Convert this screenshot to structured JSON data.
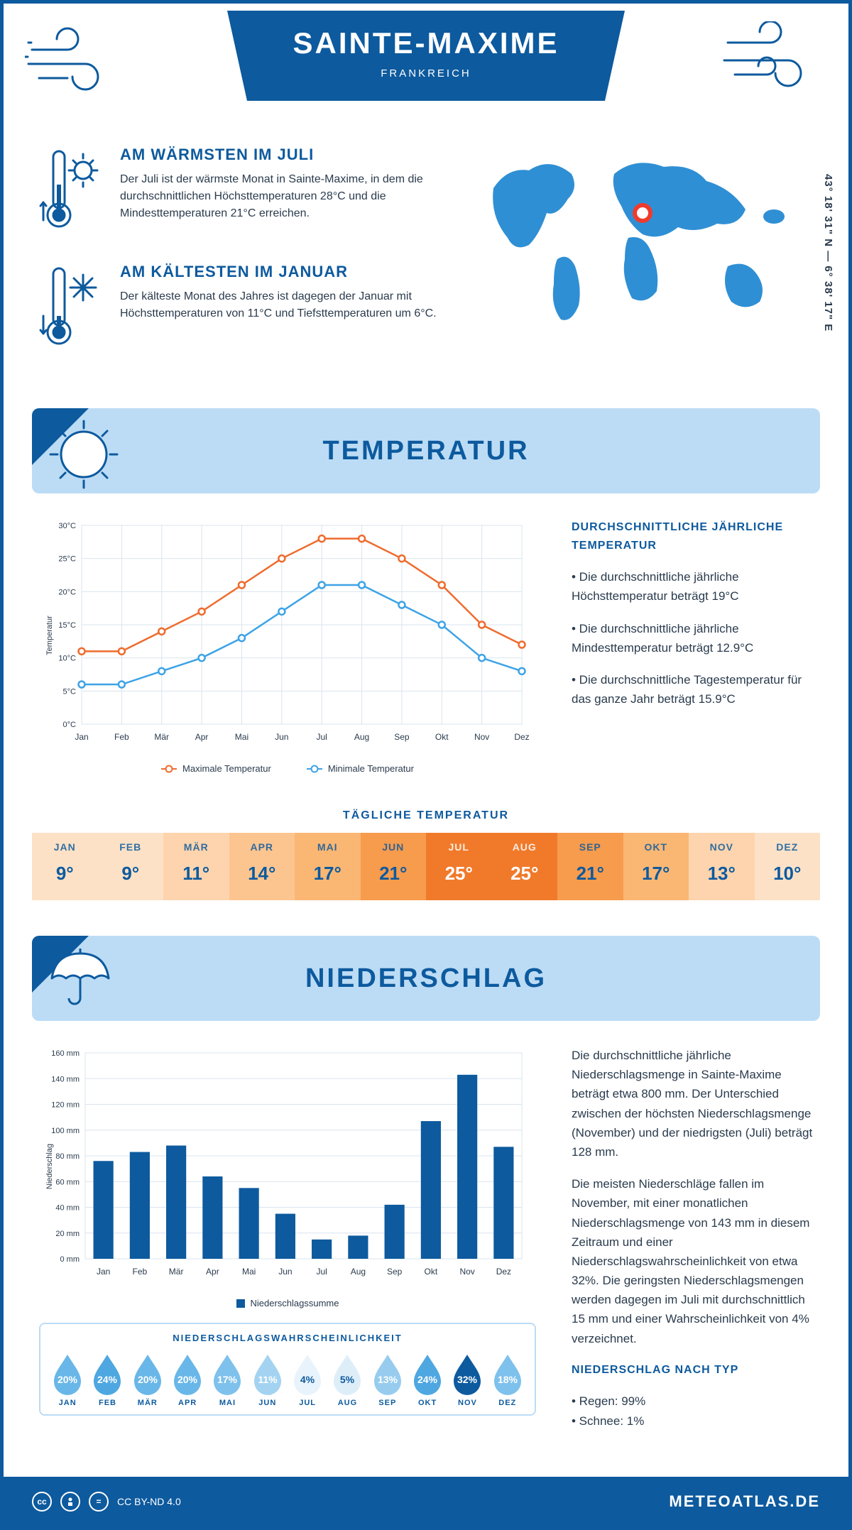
{
  "header": {
    "title": "SAINTE-MAXIME",
    "subtitle": "FRANKREICH",
    "coords": "43° 18' 31\" N — 6° 38' 17\" E"
  },
  "colors": {
    "primary": "#0d5a9e",
    "light": "#bcdcf5",
    "accent_orange": "#ef6b2d",
    "accent_blue": "#3da3e6",
    "text": "#2a3b4d",
    "grid": "#d9e4ee",
    "marker_ring": "#ef3b2d"
  },
  "intro": {
    "warm": {
      "title": "AM WÄRMSTEN IM JULI",
      "text": "Der Juli ist der wärmste Monat in Sainte-Maxime, in dem die durchschnittlichen Höchsttemperaturen 28°C und die Mindesttemperaturen 21°C erreichen."
    },
    "cold": {
      "title": "AM KÄLTESTEN IM JANUAR",
      "text": "Der kälteste Monat des Jahres ist dagegen der Januar mit Höchsttemperaturen von 11°C und Tiefsttemperaturen um 6°C."
    }
  },
  "sections": {
    "temp": "TEMPERATUR",
    "precip": "NIEDERSCHLAG"
  },
  "months": [
    "Jan",
    "Feb",
    "Mär",
    "Apr",
    "Mai",
    "Jun",
    "Jul",
    "Aug",
    "Sep",
    "Okt",
    "Nov",
    "Dez"
  ],
  "months_upper": [
    "JAN",
    "FEB",
    "MÄR",
    "APR",
    "MAI",
    "JUN",
    "JUL",
    "AUG",
    "SEP",
    "OKT",
    "NOV",
    "DEZ"
  ],
  "temp_chart": {
    "type": "line",
    "ylabel": "Temperatur",
    "ylim": [
      0,
      30
    ],
    "ytick_step": 5,
    "yticks": [
      "0°C",
      "5°C",
      "10°C",
      "15°C",
      "20°C",
      "25°C",
      "30°C"
    ],
    "series": {
      "max": {
        "label": "Maximale Temperatur",
        "color": "#ef6b2d",
        "values": [
          11,
          11,
          14,
          17,
          21,
          25,
          28,
          28,
          25,
          21,
          15,
          12
        ]
      },
      "min": {
        "label": "Minimale Temperatur",
        "color": "#3da3e6",
        "values": [
          6,
          6,
          8,
          10,
          13,
          17,
          21,
          21,
          18,
          15,
          10,
          8
        ]
      }
    }
  },
  "temp_sidebar": {
    "title": "DURCHSCHNITTLICHE JÄHRLICHE TEMPERATUR",
    "bullets": [
      "• Die durchschnittliche jährliche Höchsttemperatur beträgt 19°C",
      "• Die durchschnittliche jährliche Mindesttemperatur beträgt 12.9°C",
      "• Die durchschnittliche Tagestemperatur für das ganze Jahr beträgt 15.9°C"
    ]
  },
  "daily_temp": {
    "title": "TÄGLICHE TEMPERATUR",
    "values": [
      9,
      9,
      11,
      14,
      17,
      21,
      25,
      25,
      21,
      17,
      13,
      10
    ],
    "colors": [
      "#fde1c6",
      "#fde1c6",
      "#fdd4ad",
      "#fcc590",
      "#fab773",
      "#f79b4d",
      "#f07a2a",
      "#f07a2a",
      "#f79b4d",
      "#fab773",
      "#fdd4ad",
      "#fde1c6"
    ],
    "hot": [
      false,
      false,
      false,
      false,
      false,
      false,
      true,
      true,
      false,
      false,
      false,
      false
    ]
  },
  "precip_chart": {
    "type": "bar",
    "ylabel": "Niederschlag",
    "ylim": [
      0,
      160
    ],
    "ytick_step": 20,
    "yticks": [
      "0 mm",
      "20 mm",
      "40 mm",
      "60 mm",
      "80 mm",
      "100 mm",
      "120 mm",
      "140 mm",
      "160 mm"
    ],
    "bar_color": "#0d5a9e",
    "legend": "Niederschlagssumme",
    "values": [
      76,
      83,
      88,
      64,
      55,
      35,
      15,
      18,
      42,
      107,
      143,
      87
    ]
  },
  "precip_prob": {
    "title": "NIEDERSCHLAGSWAHRSCHEINLICHKEIT",
    "values": [
      20,
      24,
      20,
      20,
      17,
      11,
      4,
      5,
      13,
      24,
      32,
      18
    ],
    "colors": [
      "#69b7e8",
      "#4ea7e0",
      "#69b7e8",
      "#69b7e8",
      "#7ec1ec",
      "#a3d3f1",
      "#e9f3fb",
      "#ddeef9",
      "#97ccef",
      "#4ea7e0",
      "#0d5a9e",
      "#7ec1ec"
    ],
    "text_colors": [
      "#fff",
      "#fff",
      "#fff",
      "#fff",
      "#fff",
      "#fff",
      "#0d5a9e",
      "#0d5a9e",
      "#fff",
      "#fff",
      "#fff",
      "#fff"
    ]
  },
  "precip_sidebar": {
    "p1": "Die durchschnittliche jährliche Niederschlagsmenge in Sainte-Maxime beträgt etwa 800 mm. Der Unterschied zwischen der höchsten Niederschlagsmenge (November) und der niedrigsten (Juli) beträgt 128 mm.",
    "p2": "Die meisten Niederschläge fallen im November, mit einer monatlichen Niederschlagsmenge von 143 mm in diesem Zeitraum und einer Niederschlagswahrscheinlichkeit von etwa 32%. Die geringsten Niederschlagsmengen werden dagegen im Juli mit durchschnittlich 15 mm und einer Wahrscheinlichkeit von 4% verzeichnet.",
    "type_title": "NIEDERSCHLAG NACH TYP",
    "types": [
      "• Regen: 99%",
      "• Schnee: 1%"
    ]
  },
  "footer": {
    "license": "CC BY-ND 4.0",
    "brand": "METEOATLAS.DE"
  }
}
